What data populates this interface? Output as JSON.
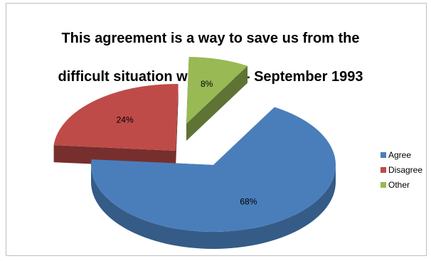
{
  "chart_data": {
    "type": "pie",
    "title_line1": "This agreement is a way to save us from the",
    "title_line2": "difficult situation we are in.  - September 1993",
    "slices": [
      {
        "label": "Agree",
        "value": 68,
        "display": "68%",
        "color": "#4a7ebb",
        "exploded": false
      },
      {
        "label": "Disagree",
        "value": 24,
        "display": "24%",
        "color": "#be4b48",
        "exploded": true
      },
      {
        "label": "Other",
        "value": 8,
        "display": "8%",
        "color": "#98b954",
        "exploded": true
      }
    ],
    "legend_position": "right",
    "style": "3d-exploded"
  }
}
